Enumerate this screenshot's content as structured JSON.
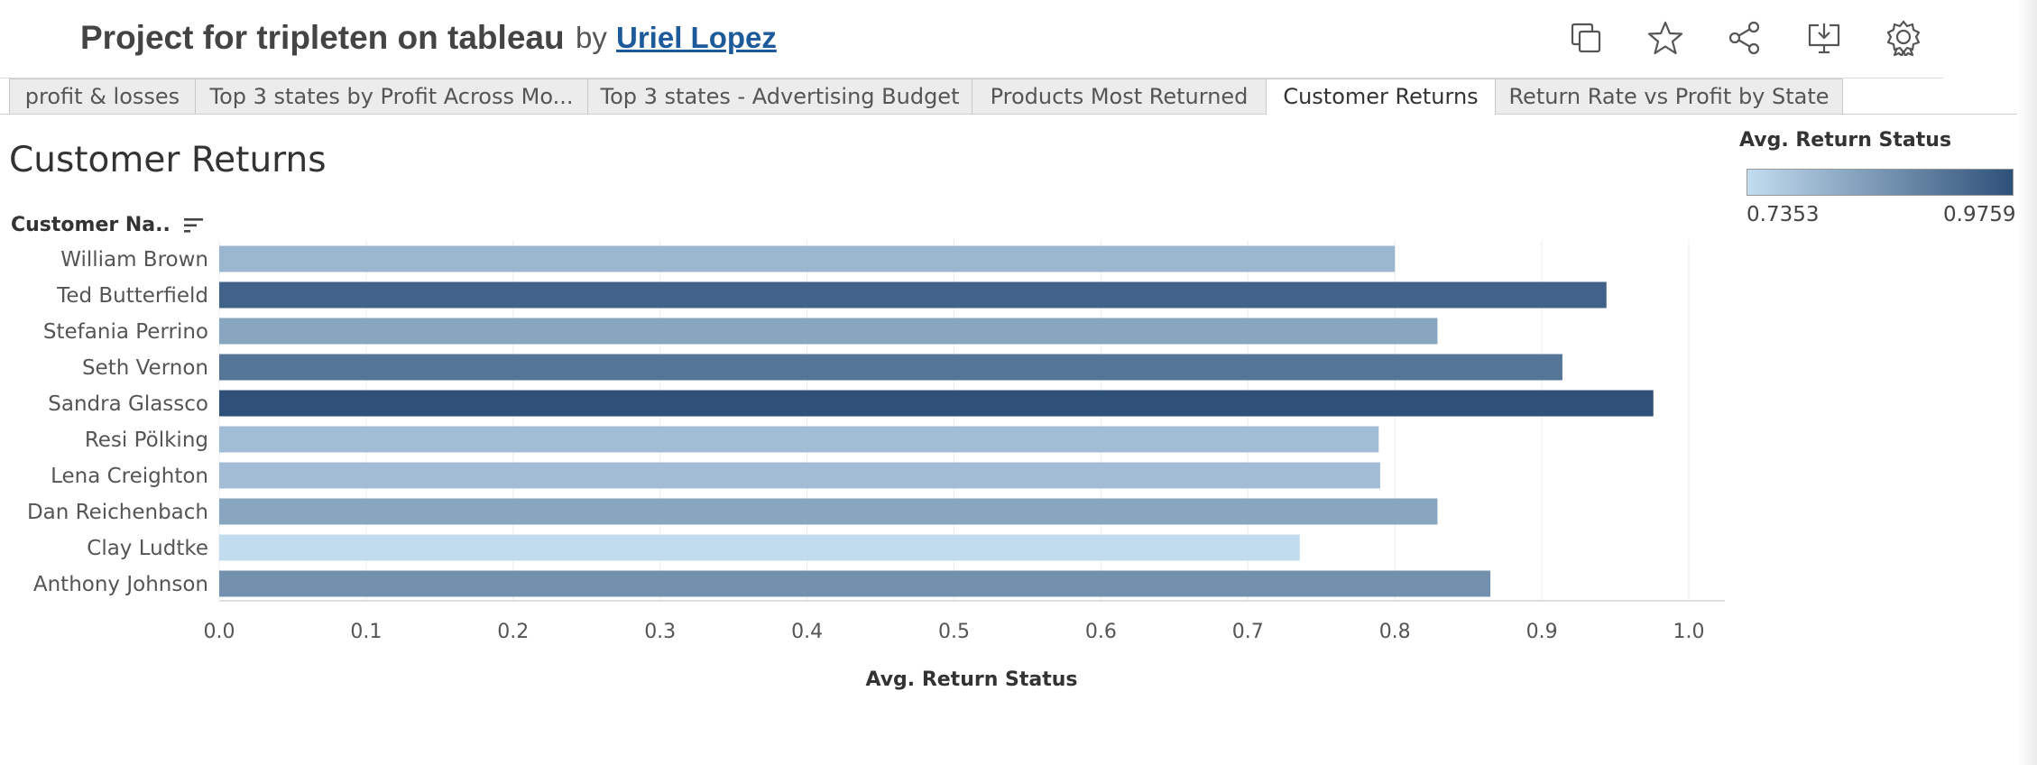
{
  "header": {
    "title": "Project for tripleten on tableau",
    "by_label": "by",
    "author": "Uriel Lopez",
    "toolbar_icons": [
      "duplicate-icon",
      "favorite-star-icon",
      "share-icon",
      "download-icon",
      "badge-icon"
    ]
  },
  "tabs": [
    {
      "label": "profit & losses",
      "active": false
    },
    {
      "label": "Top 3 states by Profit Across Mo...",
      "active": false
    },
    {
      "label": "Top 3 states - Advertising Budget",
      "active": false
    },
    {
      "label": "Products Most Returned",
      "active": false
    },
    {
      "label": "Customer Returns",
      "active": true
    },
    {
      "label": "Return Rate vs Profit by State",
      "active": false
    }
  ],
  "sheet": {
    "title": "Customer Returns",
    "row_header": "Customer Na.."
  },
  "legend": {
    "title": "Avg. Return Status",
    "min_label": "0.7353",
    "max_label": "0.9759",
    "color_low": "#c2dcef",
    "color_high": "#2f5179"
  },
  "chart_data": {
    "type": "bar",
    "orientation": "horizontal",
    "categories": [
      "William Brown",
      "Ted Butterfield",
      "Stefania Perrino",
      "Seth Vernon",
      "Sandra Glassco",
      "Resi Pölking",
      "Lena Creighton",
      "Dan Reichenbach",
      "Clay Ludtke",
      "Anthony Johnson"
    ],
    "values": [
      0.8,
      0.944,
      0.829,
      0.914,
      0.9759,
      0.789,
      0.79,
      0.829,
      0.7353,
      0.865
    ],
    "xlabel": "Avg. Return Status",
    "ylabel": "Customer Na..",
    "xlim": [
      0,
      1.0
    ],
    "xticks": [
      "0.0",
      "0.1",
      "0.2",
      "0.3",
      "0.4",
      "0.5",
      "0.6",
      "0.7",
      "0.8",
      "0.9",
      "1.0"
    ],
    "color_scale": {
      "min": 0.7353,
      "max": 0.9759,
      "low": "#c2dcef",
      "high": "#2f5179"
    },
    "grid": true,
    "legend_position": "top-right"
  }
}
